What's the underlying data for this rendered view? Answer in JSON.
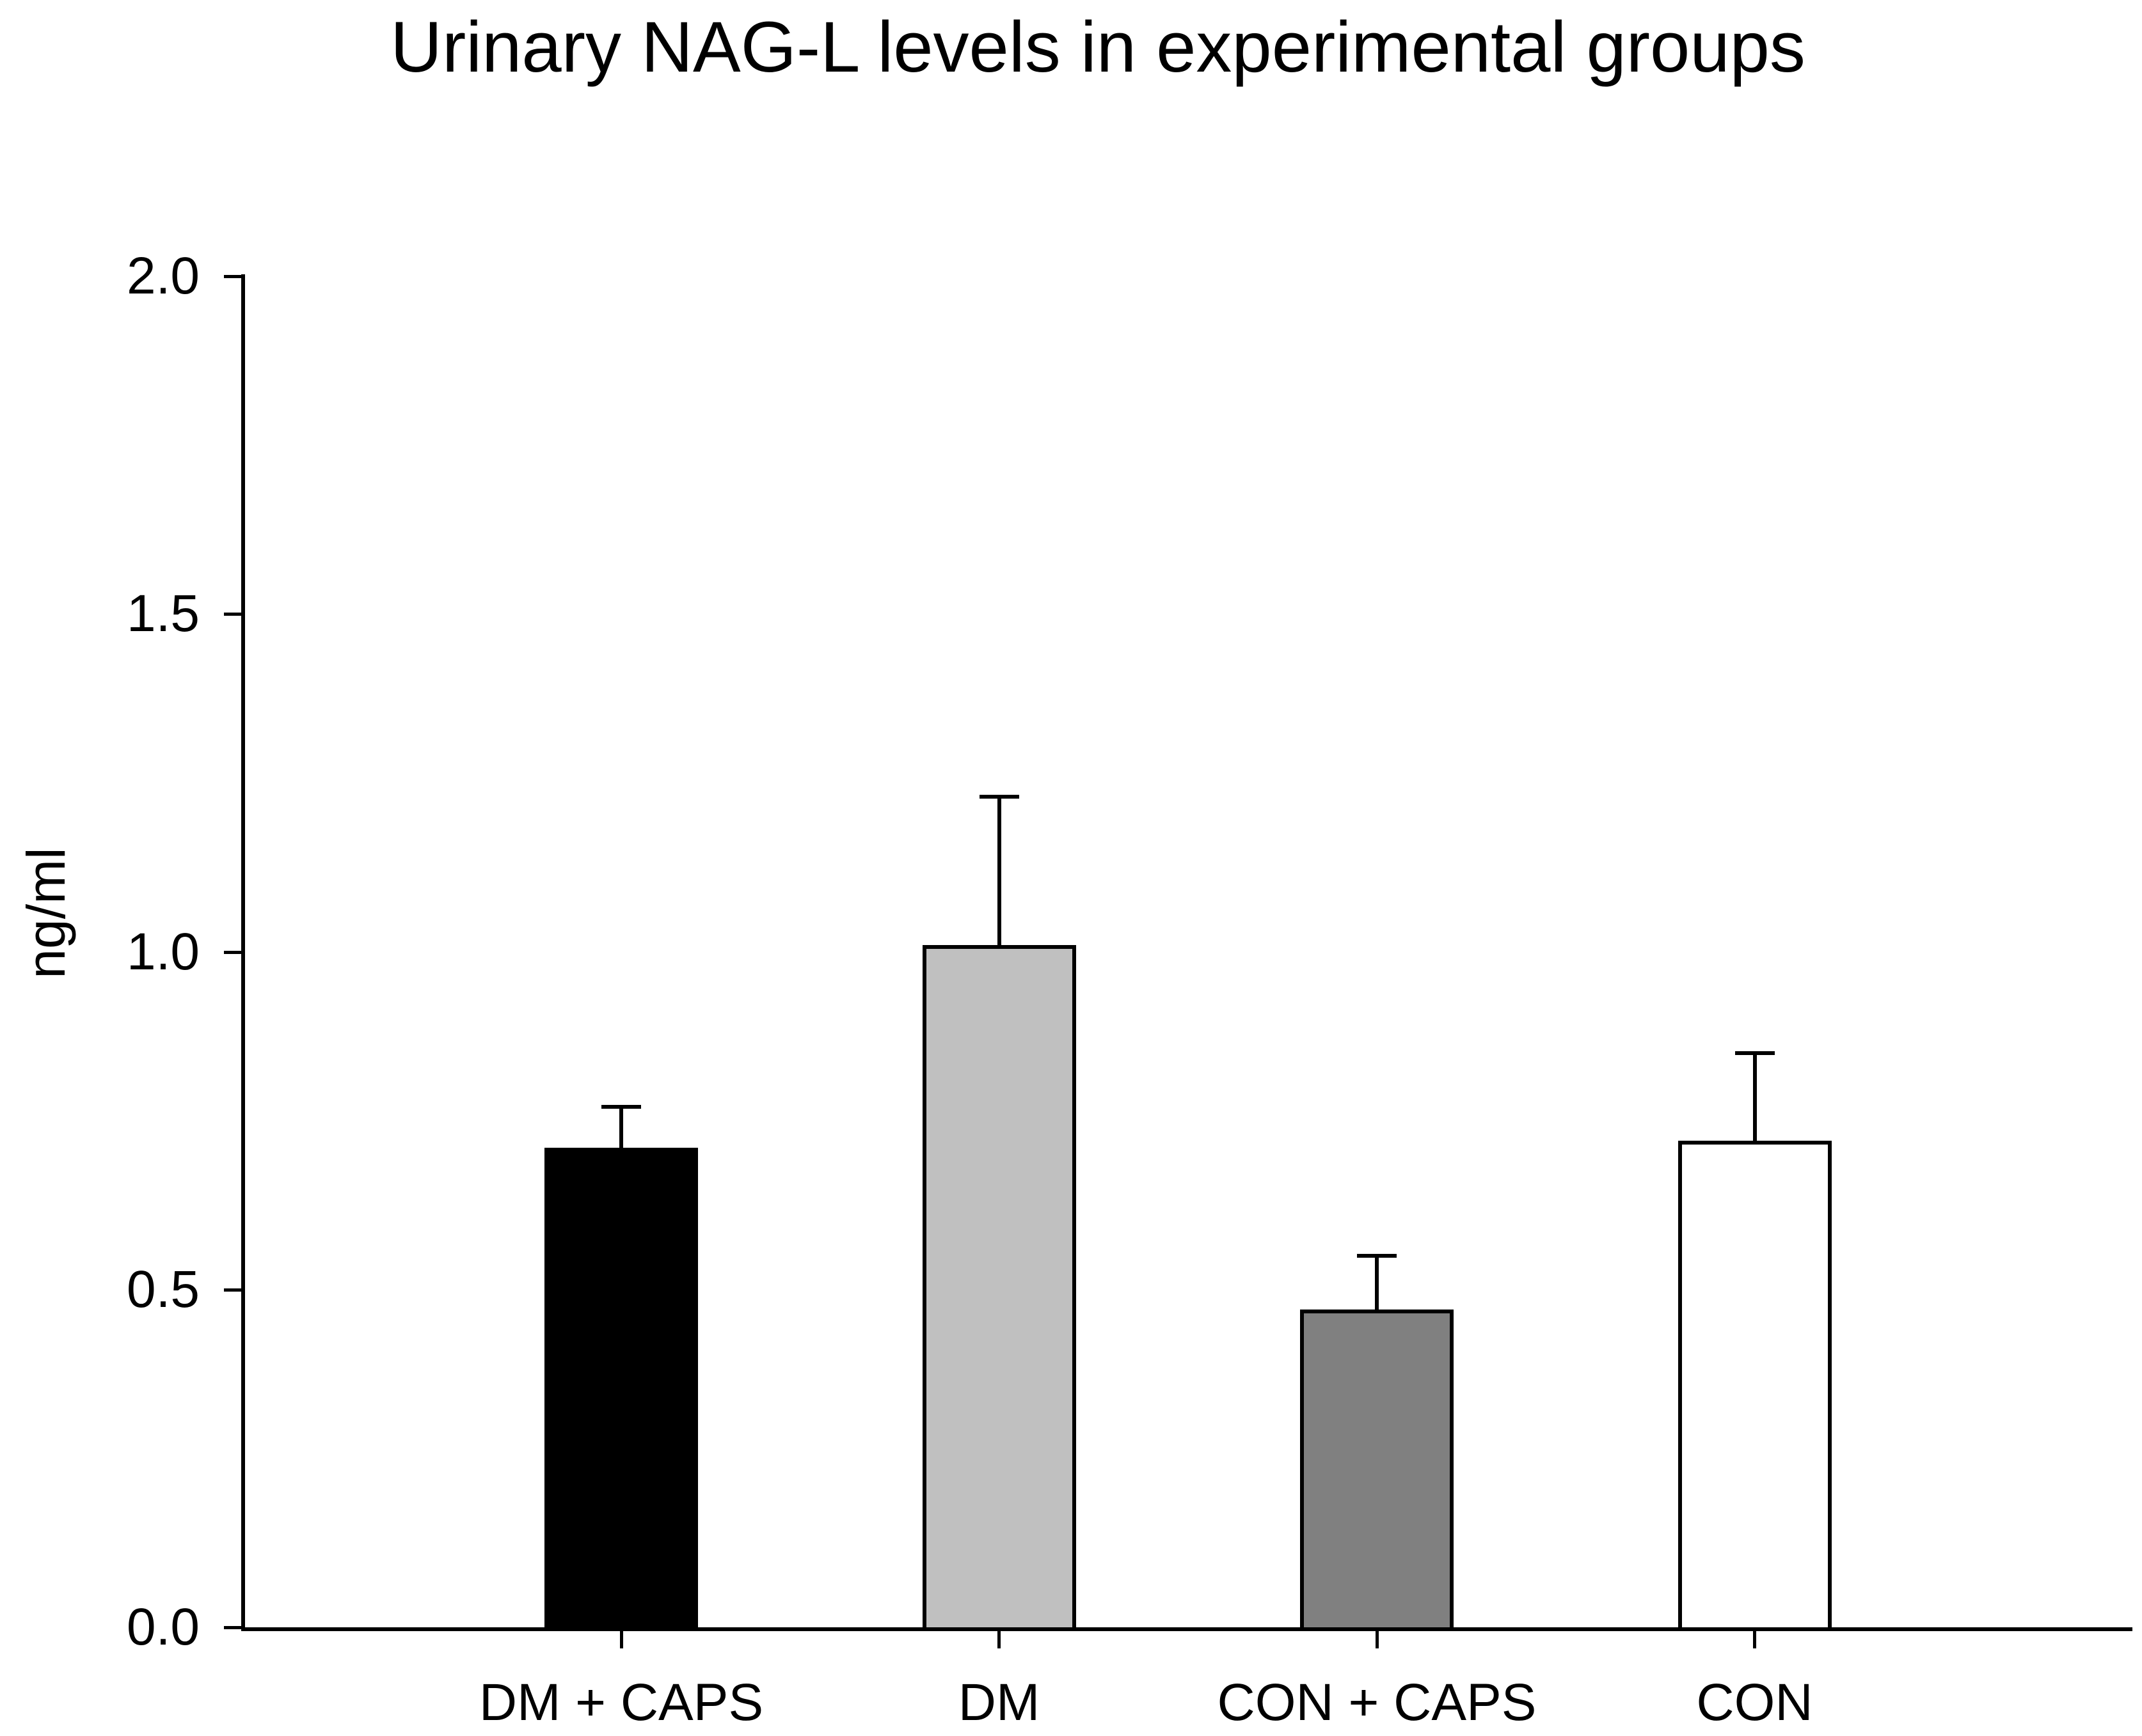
{
  "title": "Urinary NAG-L levels in experimental groups",
  "y_axis": {
    "label": "ng/ml",
    "ticks": [
      "2.0",
      "1.5",
      "1.0",
      "0.5",
      "0.0"
    ],
    "min": 0.0,
    "max": 2.0
  },
  "x_axis": {
    "categories": [
      "DM + CAPS",
      "DM",
      "CON + CAPS",
      "CON"
    ]
  },
  "colors": {
    "axis": "#000000",
    "text": "#000000",
    "background": "#ffffff",
    "bar_outline": "#000000"
  },
  "chart_data": {
    "type": "bar",
    "title": "Urinary NAG-L levels in experimental groups",
    "categories": [
      "DM + CAPS",
      "DM",
      "CON + CAPS",
      "CON"
    ],
    "values": [
      0.71,
      1.01,
      0.47,
      0.72
    ],
    "error_plus": [
      0.06,
      0.22,
      0.08,
      0.13
    ],
    "error_tops": [
      0.77,
      1.23,
      0.55,
      0.85
    ],
    "bar_fill_colors": [
      "#000000",
      "#c0c0c0",
      "#808080",
      "#ffffff"
    ],
    "bar_outline_color": "#000000",
    "xlabel": "",
    "ylabel": "ng/ml",
    "ylim": [
      0.0,
      2.0
    ],
    "ytick_step": 0.5,
    "yticks": [
      "2.0",
      "1.5",
      "1.0",
      "0.5",
      "0.0"
    ],
    "grid": false,
    "legend": "none",
    "error_direction": "up"
  }
}
